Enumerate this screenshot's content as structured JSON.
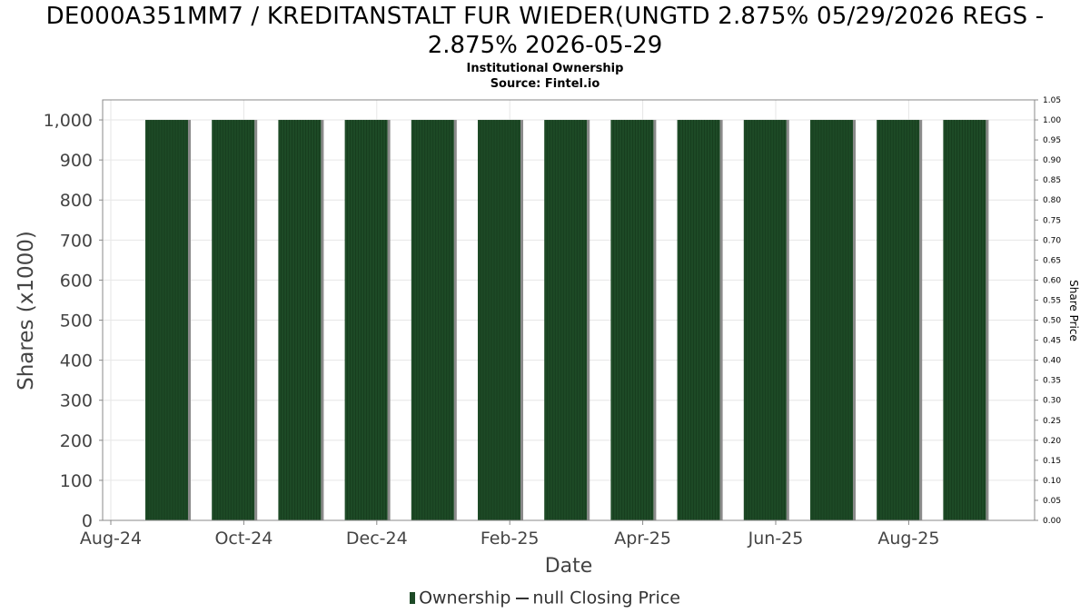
{
  "header": {
    "title_line1": "DE000A351MM7 / KREDITANSTALT FUR WIEDER(UNGTD 2.875% 05/29/2026 REGS -",
    "title_line2": "2.875% 2026-05-29",
    "subtitle_line1": "Institutional Ownership",
    "subtitle_line2": "Source: Fintel.io"
  },
  "legend": {
    "ownership": "Ownership",
    "price": "null Closing Price"
  },
  "colors": {
    "bar": "#1d4a26",
    "bar_shadow": "#8a8a8a",
    "grid": "#e6e6e6",
    "axis": "#888888"
  },
  "chart_data": {
    "type": "bar",
    "title": "DE000A351MM7 / KREDITANSTALT FUR WIEDER(UNGTD 2.875% 05/29/2026 REGS - 2.875% 2026-05-29",
    "subtitle": "Institutional Ownership",
    "xlabel": "Date",
    "ylabel": "Shares (x1000)",
    "y2label": "Share Price",
    "ylim": [
      0,
      1050
    ],
    "y2lim": [
      0,
      1.05
    ],
    "yticks": [
      "0",
      "100",
      "200",
      "300",
      "400",
      "500",
      "600",
      "700",
      "800",
      "900",
      "1,000"
    ],
    "y2ticks": [
      "0.00",
      "0.05",
      "0.10",
      "0.15",
      "0.20",
      "0.25",
      "0.30",
      "0.35",
      "0.40",
      "0.45",
      "0.50",
      "0.55",
      "0.60",
      "0.65",
      "0.70",
      "0.75",
      "0.80",
      "0.85",
      "0.90",
      "0.95",
      "1.00",
      "1.05"
    ],
    "xticks": [
      "Aug-24",
      "Oct-24",
      "Dec-24",
      "Feb-25",
      "Apr-25",
      "Jun-25",
      "Aug-25"
    ],
    "grid": true,
    "legend_position": "bottom",
    "categories": [
      "Sep-24",
      "Oct-24",
      "Nov-24",
      "Dec-24",
      "Jan-25",
      "Feb-25",
      "Mar-25",
      "Apr-25",
      "May-25",
      "Jun-25",
      "Jul-25",
      "Aug-25",
      "Sep-25"
    ],
    "series": [
      {
        "name": "Ownership",
        "values": [
          1000,
          1000,
          1000,
          1000,
          1000,
          1000,
          1000,
          1000,
          1000,
          1000,
          1000,
          1000,
          1000
        ]
      }
    ]
  }
}
